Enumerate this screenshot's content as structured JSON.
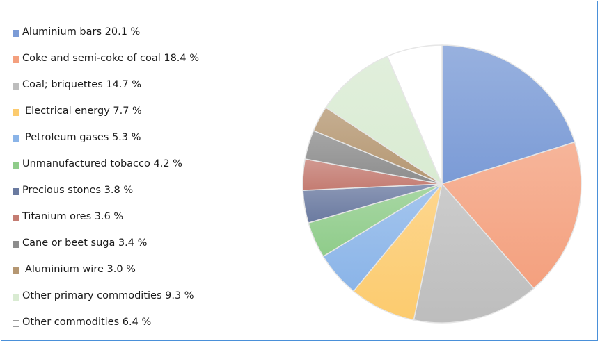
{
  "chart_data": {
    "type": "pie",
    "title": "",
    "unit": "%",
    "slices": [
      {
        "label": "Aluminium bars",
        "value": 20.1,
        "display": "Aluminium bars 20.1 %",
        "color": "#7b9bd6"
      },
      {
        "label": "Coke and semi-coke of coal",
        "value": 18.4,
        "display": "Coke and semi-coke of coal 18.4 %",
        "color": "#f4a07e"
      },
      {
        "label": "Coal; briquettes",
        "value": 14.7,
        "display": "Coal; briquettes 14.7 %",
        "color": "#bdbdbd"
      },
      {
        "label": "Electrical energy",
        "value": 7.7,
        "display": "Electrical energy 7.7 %",
        "color": "#fccb6e"
      },
      {
        "label": "Petroleum gases",
        "value": 5.3,
        "display": "Petroleum gases 5.3 %",
        "color": "#8ab4e8"
      },
      {
        "label": "Unmanufactured tobacco",
        "value": 4.2,
        "display": "Unmanufactured tobacco 4.2 %",
        "color": "#8fcc8a"
      },
      {
        "label": "Precious stones",
        "value": 3.8,
        "display": "Precious stones 3.8 %",
        "color": "#6a7aa0"
      },
      {
        "label": "Titanium ores",
        "value": 3.6,
        "display": "Titanium ores 3.6 %",
        "color": "#c47c72"
      },
      {
        "label": "Cane or beet suga",
        "value": 3.4,
        "display": "Cane or beet suga 3.4 %",
        "color": "#8d8d8d"
      },
      {
        "label": "Aluminium wire",
        "value": 3.0,
        "display": "Aluminium wire 3.0 %",
        "color": "#b59772"
      },
      {
        "label": "Other primary commodities",
        "value": 9.3,
        "display": "Other primary commodities 9.3 %",
        "color": "#d9ebd2"
      },
      {
        "label": "Other commodities",
        "value": 6.4,
        "display": "Other commodities 6.4 %",
        "color": "#ffffff"
      }
    ],
    "legend_position": "left"
  }
}
